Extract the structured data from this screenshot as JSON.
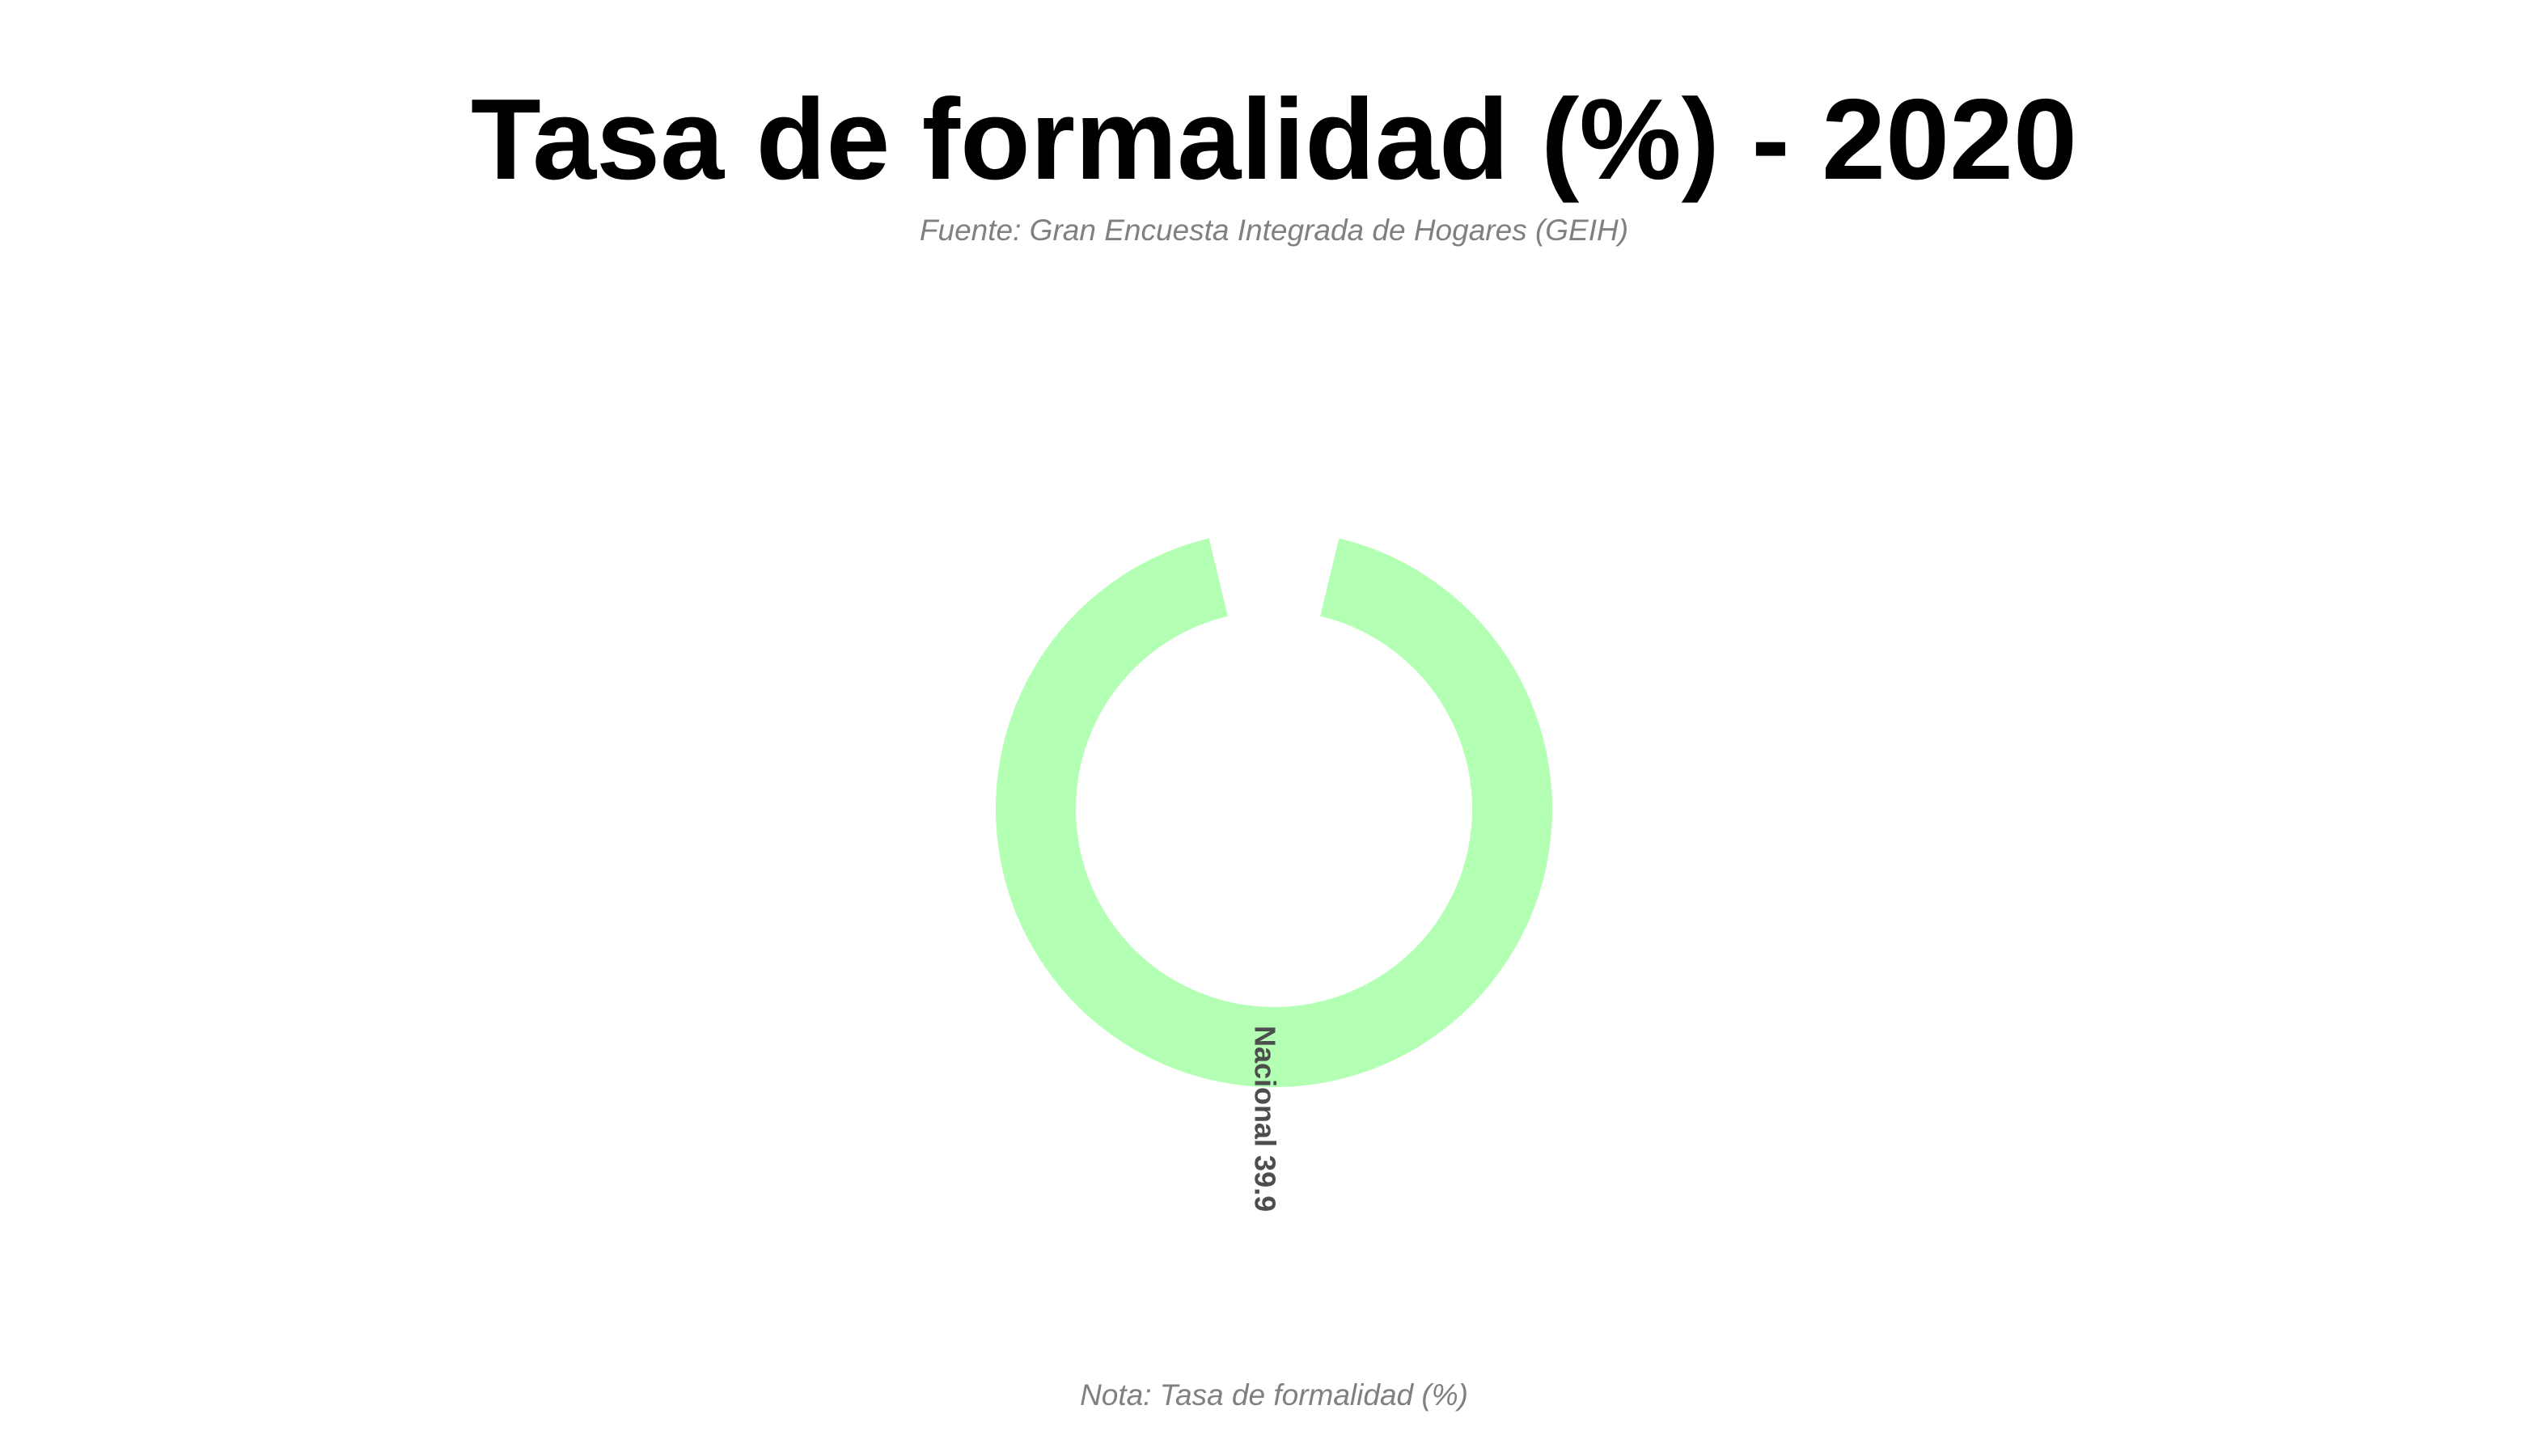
{
  "chart_data": {
    "type": "radial-bar",
    "title": "Tasa de formalidad (%) - 2020",
    "subtitle": "Fuente: Gran Encuesta Integrada de Hogares (GEIH)",
    "caption": "Nota: Tasa de formalidad (%)",
    "categories": [
      "Nacional"
    ],
    "values": [
      39.9
    ],
    "labels": [
      "Nacional 39.9"
    ],
    "bar_color": "#b3ffb3",
    "label_color": "#4d4d4d",
    "legend": "none",
    "grid": false
  }
}
